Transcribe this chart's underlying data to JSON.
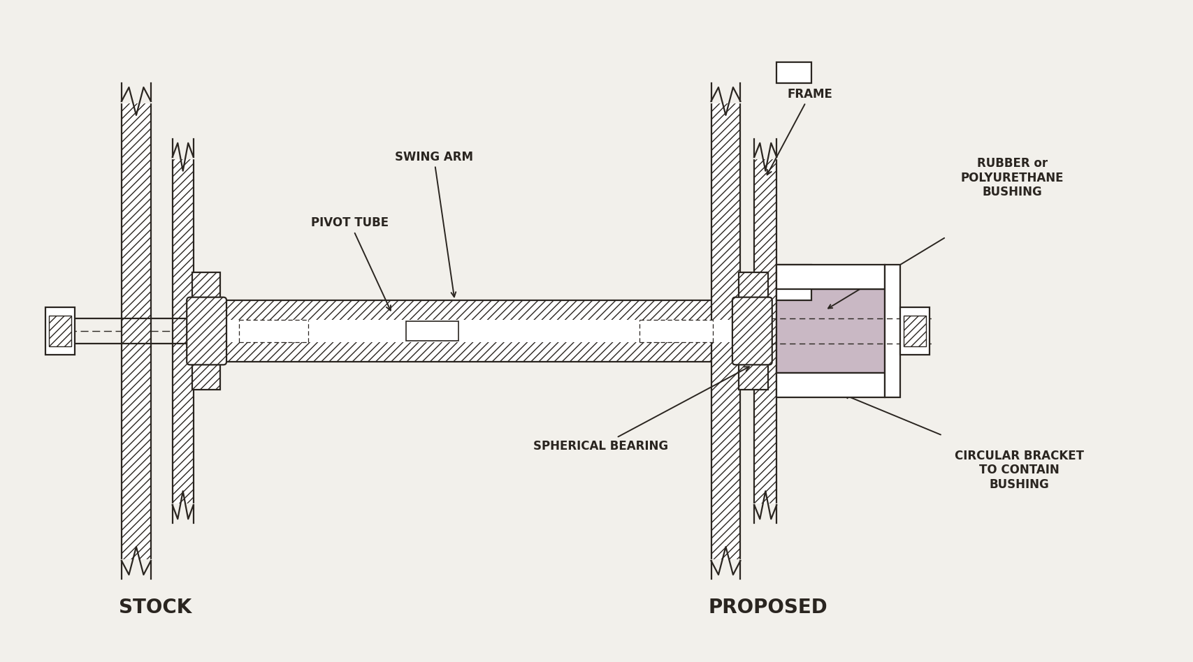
{
  "bg_color": "#f2f0eb",
  "line_color": "#2a2520",
  "bushing_color": "#c9b8c4",
  "title_stock": "STOCK",
  "title_proposed": "PROPOSED",
  "label_swing_arm": "SWING ARM",
  "label_pivot_tube": "PIVOT TUBE",
  "label_frame": "FRAME",
  "label_rubber": "RUBBER or\nPOLYURETHANE\nBUSHING",
  "label_spherical": "SPHERICAL BEARING",
  "label_circular": "CIRCULAR BRACKET\nTO CONTAIN\nBUSHING",
  "font_size_labels": 12,
  "font_size_titles": 20
}
